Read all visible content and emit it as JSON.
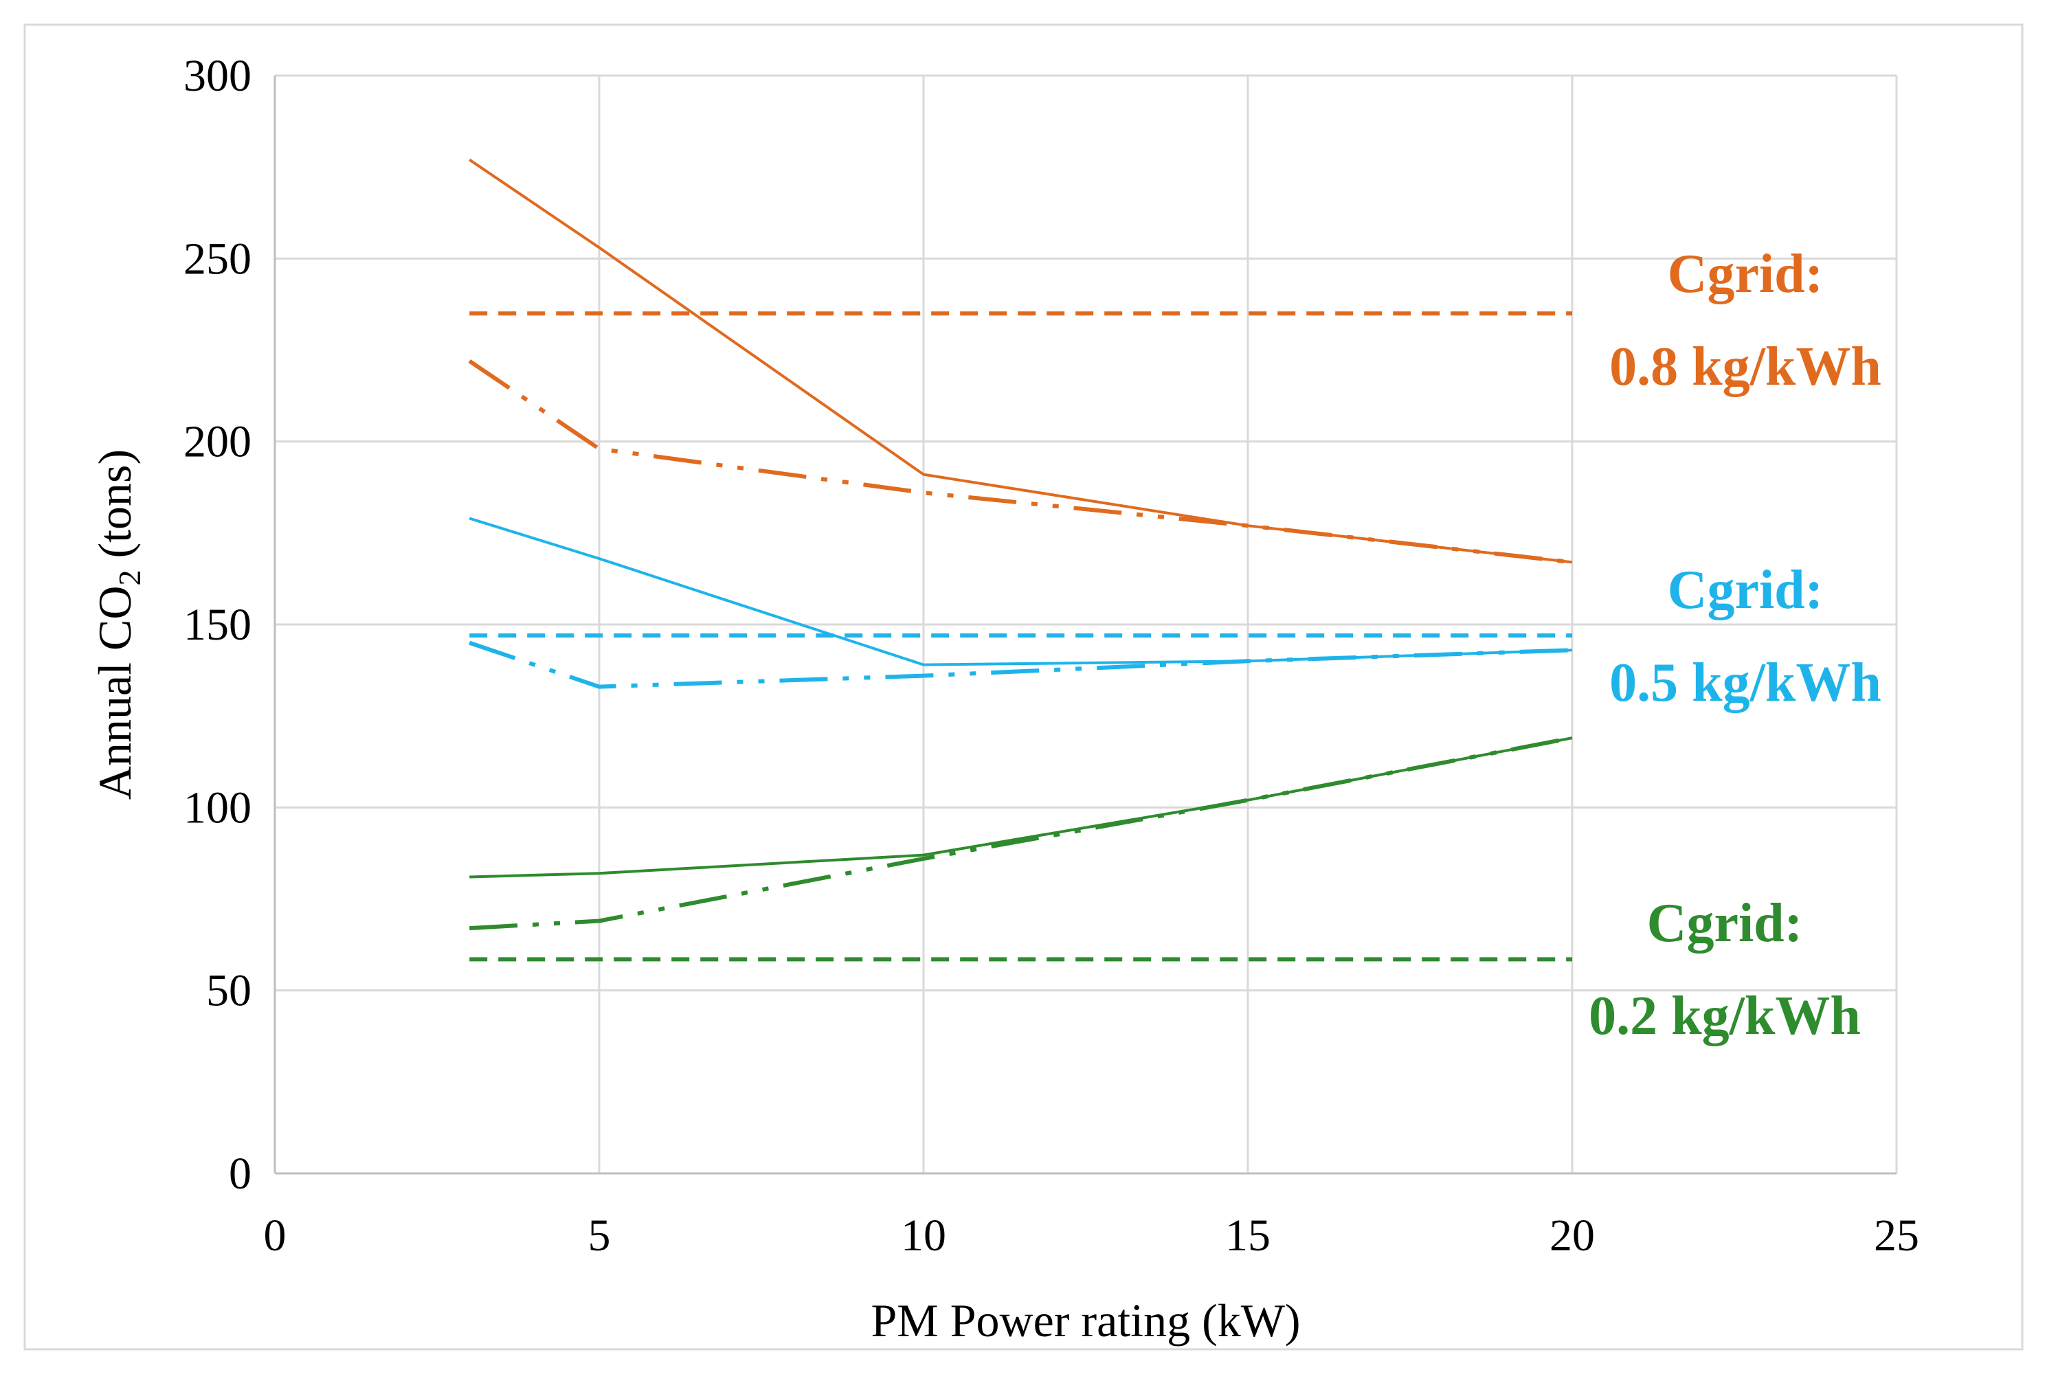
{
  "chart_data": {
    "type": "line",
    "title": "",
    "xlabel": "PM Power rating (kW)",
    "ylabel_main": "Annual CO",
    "ylabel_sub": "2",
    "ylabel_tail": " (tons)",
    "xlim": [
      0,
      25
    ],
    "ylim": [
      0,
      300
    ],
    "x_ticks": [
      "0",
      "5",
      "10",
      "15",
      "20",
      "25"
    ],
    "y_ticks": [
      "0",
      "50",
      "100",
      "150",
      "200",
      "250",
      "300"
    ],
    "grid": true,
    "legend": "none",
    "colors": {
      "orange": "#E06A1E",
      "blue": "#1EB4EA",
      "green": "#2E8B2E",
      "grid": "#D9D9D9"
    },
    "series": [
      {
        "group": "0.8",
        "style": "solid",
        "color": "#E06A1E",
        "x": [
          3,
          5,
          10,
          15,
          20
        ],
        "y": [
          277,
          253,
          191,
          177,
          167
        ]
      },
      {
        "group": "0.8",
        "style": "dashdotdot",
        "color": "#E06A1E",
        "x": [
          3,
          5,
          10,
          15,
          20
        ],
        "y": [
          222,
          198,
          186,
          177,
          167
        ]
      },
      {
        "group": "0.8",
        "style": "dashed",
        "color": "#E06A1E",
        "x": [
          3,
          20
        ],
        "y": [
          235,
          235
        ]
      },
      {
        "group": "0.5",
        "style": "solid",
        "color": "#1EB4EA",
        "x": [
          3,
          5,
          10,
          15,
          20
        ],
        "y": [
          179,
          168,
          139,
          140,
          143
        ]
      },
      {
        "group": "0.5",
        "style": "dashdotdot",
        "color": "#1EB4EA",
        "x": [
          3,
          5,
          10,
          15,
          20
        ],
        "y": [
          145,
          133,
          136,
          140,
          143
        ]
      },
      {
        "group": "0.5",
        "style": "dashed",
        "color": "#1EB4EA",
        "x": [
          3,
          20
        ],
        "y": [
          147,
          147
        ]
      },
      {
        "group": "0.2",
        "style": "solid",
        "color": "#2E8B2E",
        "x": [
          3,
          5,
          10,
          15,
          20
        ],
        "y": [
          81,
          82,
          87,
          102,
          119
        ]
      },
      {
        "group": "0.2",
        "style": "dashdotdot",
        "color": "#2E8B2E",
        "x": [
          3,
          5,
          10,
          15,
          20
        ],
        "y": [
          67,
          69,
          86,
          102,
          119
        ]
      },
      {
        "group": "0.2",
        "style": "dashed",
        "color": "#2E8B2E",
        "x": [
          3,
          20
        ],
        "y": [
          58.5,
          58.5
        ]
      }
    ],
    "annotations": [
      {
        "line1": "Cgrid:",
        "line2": "0.8 kg/kWh",
        "color": "#E06A1E"
      },
      {
        "line1": "Cgrid:",
        "line2": "0.5 kg/kWh",
        "color": "#1EB4EA"
      },
      {
        "line1": "Cgrid:",
        "line2": "0.2 kg/kWh",
        "color": "#2E8B2E"
      }
    ]
  }
}
